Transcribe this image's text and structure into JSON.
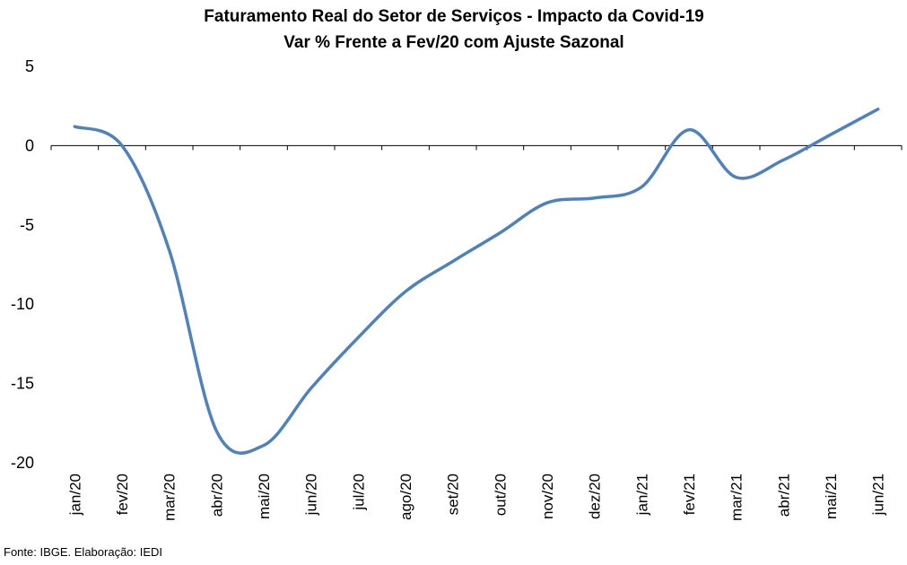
{
  "chart_data": {
    "type": "line",
    "title": "Faturamento Real do Setor de Serviços - Impacto da Covid-19",
    "subtitle": "Var % Frente a Fev/20 com Ajuste Sazonal",
    "xlabel": "",
    "ylabel": "",
    "categories": [
      "jan/20",
      "fev/20",
      "mar/20",
      "abr/20",
      "mai/20",
      "jun/20",
      "jul/20",
      "ago/20",
      "set/20",
      "out/20",
      "nov/20",
      "dez/20",
      "jan/21",
      "fev/21",
      "mar/21",
      "abr/21",
      "mai/21",
      "jun/21"
    ],
    "series": [
      {
        "values": [
          1.2,
          0.0,
          -6.6,
          -18.0,
          -18.9,
          -15.3,
          -12.1,
          -9.2,
          -7.3,
          -5.5,
          -3.6,
          -3.3,
          -2.6,
          1.0,
          -2.0,
          -0.9,
          0.7,
          2.3
        ]
      }
    ],
    "ylim": [
      -20,
      5
    ],
    "yticks": [
      5,
      0,
      -5,
      -10,
      -15,
      -20
    ],
    "grid": false,
    "legend": "none",
    "line_color": "#4f81bd",
    "zero_line_color": "#000000"
  },
  "source": "Fonte: IBGE. Elaboração: IEDI"
}
